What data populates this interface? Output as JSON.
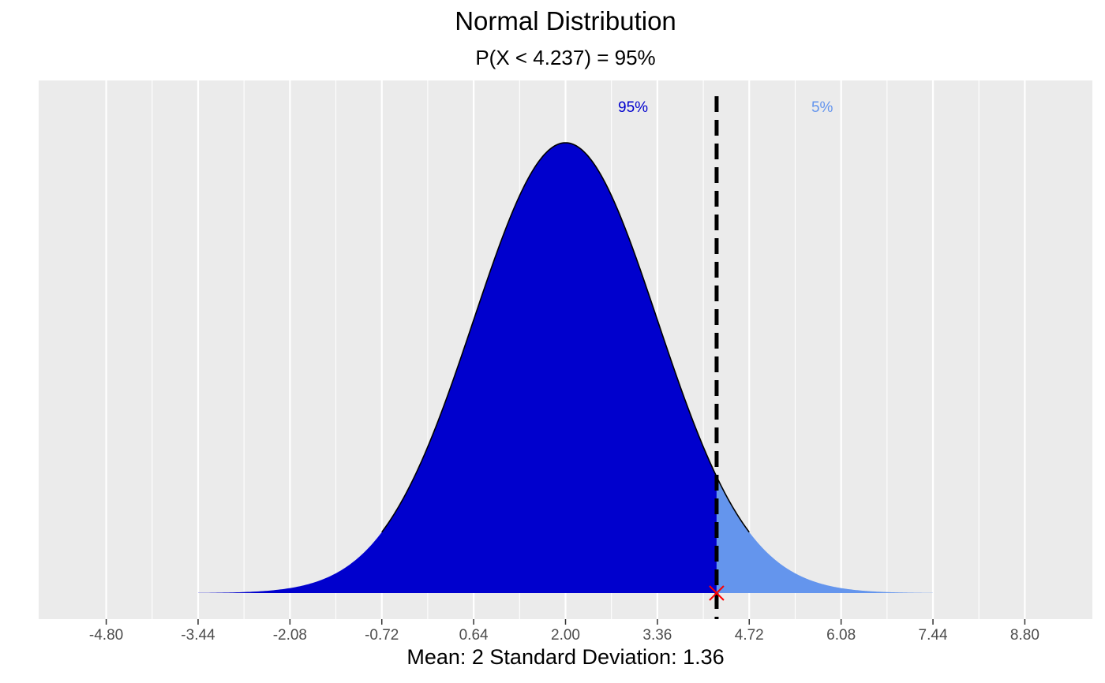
{
  "chart_data": {
    "type": "area",
    "title": "Normal Distribution",
    "subtitle": "P(X < 4.237) = 95%",
    "xlabel": "Mean: 2  Standard Deviation: 1.36",
    "ylabel": "",
    "distribution": {
      "mean": 2,
      "sd": 1.36
    },
    "quantile": 4.237,
    "xlim": [
      -5.8,
      9.8
    ],
    "curve_range": [
      -3.44,
      7.44
    ],
    "outline_range": [
      -0.72,
      4.72
    ],
    "x_ticks": [
      "-4.80",
      "-3.44",
      "-2.08",
      "-0.72",
      "0.64",
      "2.00",
      "3.36",
      "4.72",
      "6.08",
      "7.44",
      "8.80"
    ],
    "y_ticks": [],
    "grid": true,
    "legend": "none",
    "regions": [
      {
        "label": "95%",
        "from": -3.44,
        "to": 4.237,
        "color": "#0000CD",
        "label_x": 3.0
      },
      {
        "label": "5%",
        "from": 4.237,
        "to": 7.44,
        "color": "#6495ED",
        "label_x": 5.8
      }
    ],
    "colors": {
      "panel": "#EBEBEB",
      "grid": "#FFFFFF",
      "vline": "#000000",
      "marker": "#FF0000"
    }
  }
}
